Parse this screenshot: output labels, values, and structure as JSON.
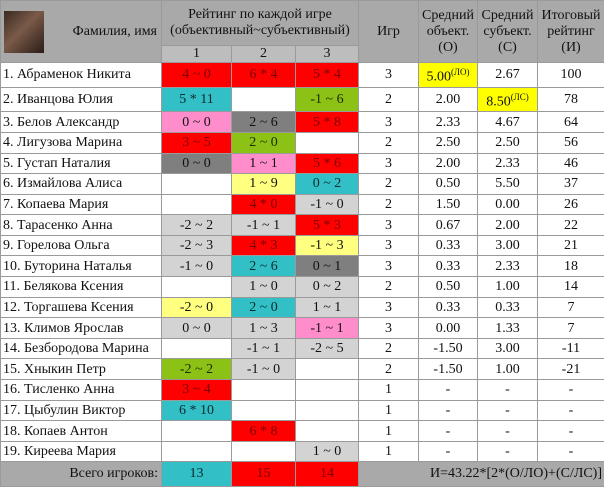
{
  "header": {
    "name_col": "Фамилия, имя",
    "rating_title_1": "Рейтинг по каждой игре",
    "rating_title_2": "(объективный~субъективный)",
    "games": [
      "1",
      "2",
      "3"
    ],
    "played": "Игр",
    "avg_obj": [
      "Средний",
      "объект.",
      "(О)"
    ],
    "avg_subj": [
      "Средний",
      "субъект.",
      "(С)"
    ],
    "total": [
      "Итоговый",
      "рейтинг",
      "(И)"
    ]
  },
  "colors": {
    "red": "#ff0000",
    "cyan": "#33bfc6",
    "green": "#8cc216",
    "pink": "#ff8dcc",
    "gray": "#7f7f7f",
    "light_gray": "#d3d3d3",
    "yellow": "#ffff80",
    "highlight": "#ffff00"
  },
  "rows": [
    {
      "name": "1. Абраменок Никита",
      "g": [
        {
          "t": "4 ~ 0",
          "c": "red"
        },
        {
          "t": "6 * 4",
          "c": "red"
        },
        {
          "t": "5 * 4",
          "c": "red"
        }
      ],
      "n": "3",
      "o": "5.00",
      "o_sup": "(ЛО)",
      "s": "2.67",
      "r": "100"
    },
    {
      "name": "2. Иванцова Юлия",
      "g": [
        {
          "t": "5 * 11",
          "c": "cyan"
        },
        {
          "t": "",
          "c": ""
        },
        {
          "t": "-1 ~ 6",
          "c": "green"
        }
      ],
      "n": "2",
      "o": "2.00",
      "s": "8.50",
      "s_sup": "(ЛС)",
      "r": "78"
    },
    {
      "name": "3. Белов Александр",
      "g": [
        {
          "t": "0 ~ 0",
          "c": "pink"
        },
        {
          "t": "2 ~ 6",
          "c": "gray"
        },
        {
          "t": "5 * 8",
          "c": "red"
        }
      ],
      "n": "3",
      "o": "2.33",
      "s": "4.67",
      "r": "64"
    },
    {
      "name": "4. Лигузова Марина",
      "g": [
        {
          "t": "3 ~ 5",
          "c": "red"
        },
        {
          "t": "2 ~ 0",
          "c": "green"
        },
        {
          "t": "",
          "c": ""
        }
      ],
      "n": "2",
      "o": "2.50",
      "s": "2.50",
      "r": "56"
    },
    {
      "name": "5. Густап Наталия",
      "g": [
        {
          "t": "0 ~ 0",
          "c": "gray"
        },
        {
          "t": "1 ~ 1",
          "c": "pink"
        },
        {
          "t": "5 * 6",
          "c": "red"
        }
      ],
      "n": "3",
      "o": "2.00",
      "s": "2.33",
      "r": "46"
    },
    {
      "name": "6. Измайлова Алиса",
      "g": [
        {
          "t": "",
          "c": ""
        },
        {
          "t": "1 ~ 9",
          "c": "yellow"
        },
        {
          "t": "0 ~ 2",
          "c": "cyan"
        }
      ],
      "n": "2",
      "o": "0.50",
      "s": "5.50",
      "r": "37"
    },
    {
      "name": "7. Копаева Мария",
      "g": [
        {
          "t": "",
          "c": ""
        },
        {
          "t": "4 * 0",
          "c": "red"
        },
        {
          "t": "-1 ~ 0",
          "c": "lgray"
        }
      ],
      "n": "2",
      "o": "1.50",
      "s": "0.00",
      "r": "26"
    },
    {
      "name": "8. Тарасенко Анна",
      "g": [
        {
          "t": "-2 ~ 2",
          "c": "lgray"
        },
        {
          "t": "-1 ~ 1",
          "c": "lgray"
        },
        {
          "t": "5 * 3",
          "c": "red"
        }
      ],
      "n": "3",
      "o": "0.67",
      "s": "2.00",
      "r": "22"
    },
    {
      "name": "9. Горелова Ольга",
      "g": [
        {
          "t": "-2 ~ 3",
          "c": "lgray"
        },
        {
          "t": "4 * 3",
          "c": "red"
        },
        {
          "t": "-1 ~ 3",
          "c": "yellow"
        }
      ],
      "n": "3",
      "o": "0.33",
      "s": "3.00",
      "r": "21"
    },
    {
      "name": "10. Буторина Наталья",
      "g": [
        {
          "t": "-1 ~ 0",
          "c": "lgray"
        },
        {
          "t": "2 ~ 6",
          "c": "cyan"
        },
        {
          "t": "0 ~ 1",
          "c": "gray"
        }
      ],
      "n": "3",
      "o": "0.33",
      "s": "2.33",
      "r": "18"
    },
    {
      "name": "11. Белякова Ксения",
      "g": [
        {
          "t": "",
          "c": ""
        },
        {
          "t": "1 ~ 0",
          "c": "lgray"
        },
        {
          "t": "0 ~ 2",
          "c": "lgray"
        }
      ],
      "n": "2",
      "o": "0.50",
      "s": "1.00",
      "r": "14"
    },
    {
      "name": "12. Торгашева Ксения",
      "g": [
        {
          "t": "-2 ~ 0",
          "c": "yellow"
        },
        {
          "t": "2 ~ 0",
          "c": "cyan"
        },
        {
          "t": "1 ~ 1",
          "c": "lgray"
        }
      ],
      "n": "3",
      "o": "0.33",
      "s": "0.33",
      "r": "7"
    },
    {
      "name": "13. Климов Ярослав",
      "g": [
        {
          "t": "0 ~ 0",
          "c": "lgray"
        },
        {
          "t": "1 ~ 3",
          "c": "lgray"
        },
        {
          "t": "-1 ~ 1",
          "c": "pink"
        }
      ],
      "n": "3",
      "o": "0.00",
      "s": "1.33",
      "r": "7"
    },
    {
      "name": "14. Безбородова Марина",
      "g": [
        {
          "t": "",
          "c": ""
        },
        {
          "t": "-1 ~ 1",
          "c": "lgray"
        },
        {
          "t": "-2 ~ 5",
          "c": "lgray"
        }
      ],
      "n": "2",
      "o": "-1.50",
      "s": "3.00",
      "r": "-11"
    },
    {
      "name": "15. Хныкин Петр",
      "g": [
        {
          "t": "-2 ~ 2",
          "c": "green"
        },
        {
          "t": "-1 ~ 0",
          "c": "lgray"
        },
        {
          "t": "",
          "c": ""
        }
      ],
      "n": "2",
      "o": "-1.50",
      "s": "1.00",
      "r": "-21"
    },
    {
      "name": "16. Тисленко Анна",
      "g": [
        {
          "t": "3 ~ 4",
          "c": "red"
        },
        {
          "t": "",
          "c": ""
        },
        {
          "t": "",
          "c": ""
        }
      ],
      "n": "1",
      "o": "-",
      "s": "-",
      "r": "-"
    },
    {
      "name": "17. Цыбулин Виктор",
      "g": [
        {
          "t": "6 * 10",
          "c": "cyan"
        },
        {
          "t": "",
          "c": ""
        },
        {
          "t": "",
          "c": ""
        }
      ],
      "n": "1",
      "o": "-",
      "s": "-",
      "r": "-"
    },
    {
      "name": "18. Копаев Антон",
      "g": [
        {
          "t": "",
          "c": ""
        },
        {
          "t": "6 * 8",
          "c": "red"
        },
        {
          "t": "",
          "c": ""
        }
      ],
      "n": "1",
      "o": "-",
      "s": "-",
      "r": "-"
    },
    {
      "name": "19. Киреева Мария",
      "g": [
        {
          "t": "",
          "c": ""
        },
        {
          "t": "",
          "c": ""
        },
        {
          "t": "1 ~ 0",
          "c": "lgray"
        }
      ],
      "n": "1",
      "o": "-",
      "s": "-",
      "r": "-"
    }
  ],
  "footer": {
    "label": "Всего игроков:",
    "counts": [
      {
        "t": "13",
        "c": "cyan"
      },
      {
        "t": "15",
        "c": "red"
      },
      {
        "t": "14",
        "c": "red"
      }
    ],
    "formula": "И=43.22*[2*(О/ЛО)+(С/ЛС)]"
  }
}
